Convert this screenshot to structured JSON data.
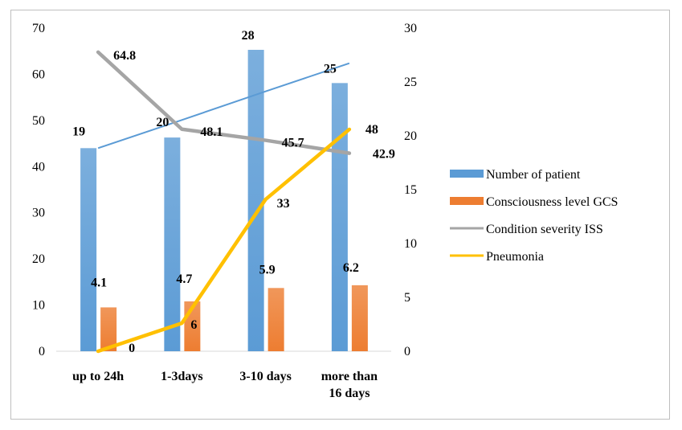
{
  "chart_data": {
    "type": "bar",
    "categories": [
      "up to 24h",
      "1-3days",
      "3-10 days",
      "more than 16 days"
    ],
    "y_left": {
      "ylim": [
        0,
        70
      ],
      "ticks": [
        0,
        10,
        20,
        30,
        40,
        50,
        60,
        70
      ]
    },
    "y_right": {
      "ylim": [
        0,
        30
      ],
      "ticks": [
        0,
        5,
        10,
        15,
        20,
        25,
        30
      ]
    },
    "grid": false,
    "legend_position": "right",
    "series": [
      {
        "name": "Number of patient",
        "type": "bar",
        "axis": "left",
        "color": "#5b9bd5",
        "values": [
          44,
          46.3,
          65.3,
          58.1
        ],
        "labels": [
          "19",
          "20",
          "28",
          "25"
        ]
      },
      {
        "name": "Consciousness level GCS",
        "type": "bar",
        "axis": "left",
        "color": "#ed7d31",
        "values": [
          9.5,
          10.8,
          13.7,
          14.3
        ],
        "labels": [
          "4.1",
          "4.7",
          "5.9",
          "6.2"
        ]
      },
      {
        "name": "Condition severity ISS",
        "type": "line",
        "axis": "left",
        "color": "#a5a5a5",
        "values": [
          64.8,
          48.1,
          45.7,
          42.9
        ],
        "labels": [
          "64.8",
          "48.1",
          "45.7",
          "42.9"
        ]
      },
      {
        "name": "Pneumonia",
        "type": "line",
        "axis": "right",
        "color": "#ffc000",
        "values": [
          0,
          2.6,
          14.1,
          20.6
        ],
        "labels": [
          "0",
          "6",
          "33",
          "48"
        ]
      }
    ],
    "trendline": {
      "series": "Number of patient",
      "color": "#5b9bd5",
      "values": [
        44,
        50.1,
        56.3,
        62.4
      ]
    }
  }
}
